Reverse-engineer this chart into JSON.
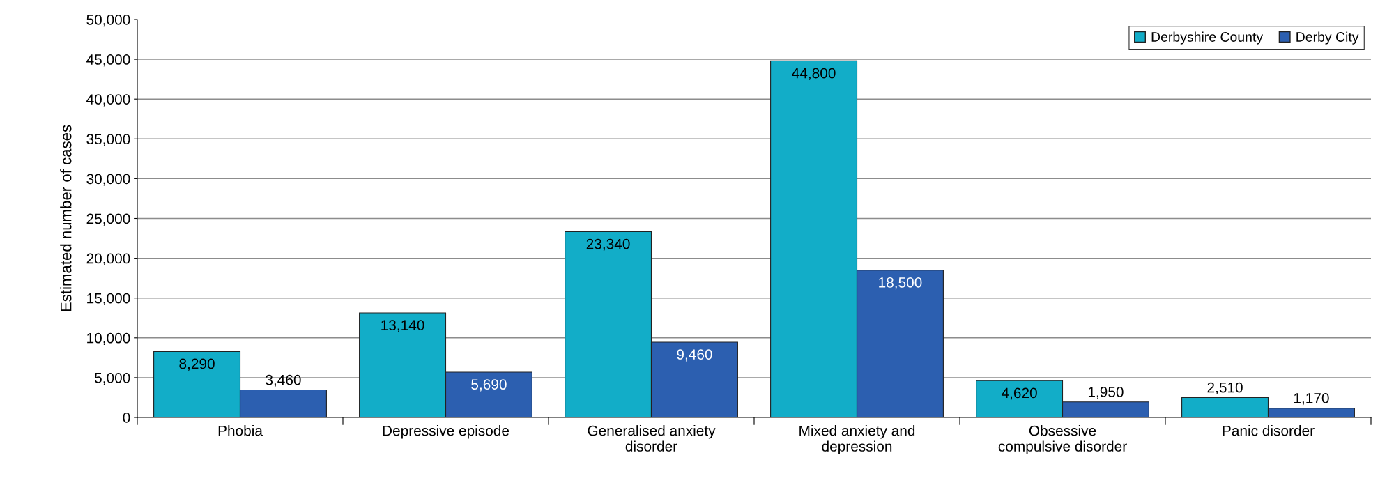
{
  "chart_data": {
    "type": "bar",
    "ylabel": "Estimated number of cases",
    "categories": [
      "Phobia",
      "Depressive episode",
      "Generalised anxiety\ndisorder",
      "Mixed anxiety and\ndepression",
      "Obsessive\ncompulsive disorder",
      "Panic disorder"
    ],
    "series": [
      {
        "name": "Derbyshire County",
        "color": "#12adc8",
        "values": [
          8290,
          13140,
          23340,
          44800,
          4620,
          2510
        ],
        "value_labels": [
          "8,290",
          "13,140",
          "23,340",
          "44,800",
          "4,620",
          "2,510"
        ]
      },
      {
        "name": "Derby City",
        "color": "#2c5fb0",
        "values": [
          3460,
          5690,
          9460,
          18500,
          1950,
          1170
        ],
        "value_labels": [
          "3,460",
          "5,690",
          "9,460",
          "18,500",
          "1,950",
          "1,170"
        ]
      }
    ],
    "ylim": [
      0,
      50000
    ],
    "yticks": [
      {
        "value": 0,
        "label": "0"
      },
      {
        "value": 5000,
        "label": "5,000"
      },
      {
        "value": 10000,
        "label": "10,000"
      },
      {
        "value": 15000,
        "label": "15,000"
      },
      {
        "value": 20000,
        "label": "20,000"
      },
      {
        "value": 25000,
        "label": "25,000"
      },
      {
        "value": 30000,
        "label": "30,000"
      },
      {
        "value": 35000,
        "label": "35,000"
      },
      {
        "value": 40000,
        "label": "40,000"
      },
      {
        "value": 45000,
        "label": "45,000"
      },
      {
        "value": 50000,
        "label": "50,000"
      }
    ],
    "grid": "y",
    "legend": "top right"
  }
}
